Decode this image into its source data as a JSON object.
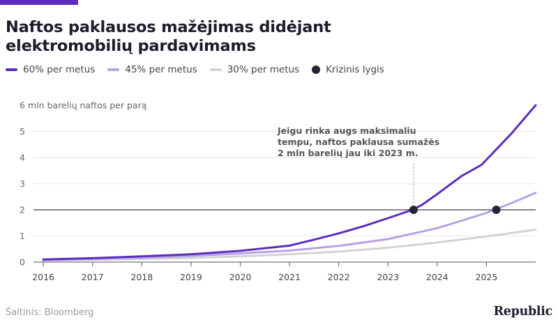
{
  "header": {
    "title_line1": "Naftos paklausos mažėjimas didėjant",
    "title_line2": "elektromobilių pardavimams"
  },
  "legend": [
    {
      "label": "60% per metus",
      "color": "#5b2dbd",
      "kind": "line"
    },
    {
      "label": "45% per metus",
      "color": "#b7a1e6",
      "kind": "line"
    },
    {
      "label": "30% per metus",
      "color": "#d3d3d3",
      "kind": "line"
    },
    {
      "label": "Krizinis lygis",
      "color": "#24243a",
      "kind": "dot"
    }
  ],
  "chart_data": {
    "type": "line",
    "title": "Naftos paklausos mažėjimas didėjant elektromobilių pardavimams",
    "ylabel": "6 mln barelių naftos per parą",
    "xlim": [
      2015.8,
      2026.0
    ],
    "ylim": [
      0,
      6
    ],
    "x_ticks": [
      2016,
      2017,
      2018,
      2019,
      2020,
      2021,
      2022,
      2023,
      2024,
      2025
    ],
    "y_ticks": [
      0,
      1,
      2,
      3,
      4,
      5
    ],
    "y_tick_labels": [
      "0",
      "1",
      "2",
      "3",
      "4",
      "5"
    ],
    "grid": "horizontal",
    "reference_line": {
      "y": 2
    },
    "series": [
      {
        "name": "60% per metus",
        "color": "#5b2dbd",
        "x": [
          2016,
          2017,
          2018,
          2019,
          2020,
          2021,
          2021.5,
          2022,
          2022.5,
          2023,
          2023.5,
          2023.7,
          2024,
          2024.5,
          2024.9,
          2025.5,
          2026
        ],
        "y": [
          0.1,
          0.15,
          0.22,
          0.3,
          0.43,
          0.63,
          0.86,
          1.1,
          1.37,
          1.68,
          2.0,
          2.2,
          2.6,
          3.3,
          3.72,
          4.9,
          6.0
        ]
      },
      {
        "name": "45% per metus",
        "color": "#b7a1e6",
        "x": [
          2016,
          2017,
          2018,
          2019,
          2020,
          2021,
          2022,
          2023,
          2024,
          2025,
          2025.5,
          2026
        ],
        "y": [
          0.08,
          0.12,
          0.17,
          0.24,
          0.33,
          0.44,
          0.62,
          0.88,
          1.3,
          1.88,
          2.25,
          2.65
        ]
      },
      {
        "name": "30% per metus",
        "color": "#d3d3d3",
        "x": [
          2016,
          2017,
          2018,
          2019,
          2020,
          2021,
          2022,
          2023,
          2024,
          2025,
          2026
        ],
        "y": [
          0.06,
          0.09,
          0.12,
          0.16,
          0.22,
          0.3,
          0.4,
          0.55,
          0.75,
          0.98,
          1.24
        ]
      }
    ],
    "crisis_points": [
      {
        "x": 2023.52,
        "y": 2.0
      },
      {
        "x": 2025.2,
        "y": 2.0
      }
    ],
    "annotation": {
      "lines": [
        "Jeigu rinka augs maksimaliu",
        "tempu, naftos paklausa sumažės",
        "2 mln barelių jau iki 2023 m."
      ],
      "x": 2023.52,
      "y": 2.0
    }
  },
  "footer": {
    "source": "Šaltinis: Bloomberg",
    "brand": "Republic"
  }
}
